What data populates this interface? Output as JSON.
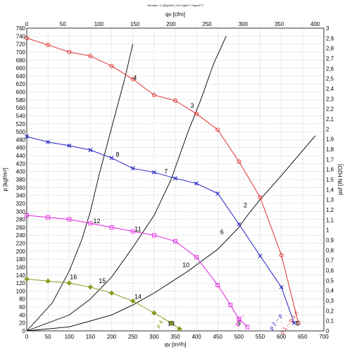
{
  "chart_data": {
    "type": "line",
    "title": "Density ≈ 1.2[Kg/m3] | 15.0 kg/m³ 1.2kg/m³ 2",
    "xlabel": "qv [m³/h]",
    "x2label": "qv [cfm]",
    "ylabel": "p [kgf/m²]",
    "y2label": "psf [IN H2O]",
    "xlim": [
      0,
      700
    ],
    "x2lim": [
      0,
      412
    ],
    "ylim": [
      0,
      760
    ],
    "y2lim": [
      0,
      3
    ],
    "xticks": [
      "0",
      "50",
      "100",
      "150",
      "200",
      "250",
      "300",
      "350",
      "400",
      "450",
      "500",
      "550",
      "600",
      "650",
      "700"
    ],
    "x2ticks": [
      "0",
      "50",
      "100",
      "150",
      "200",
      "250",
      "300",
      "350",
      "400"
    ],
    "yticks": [
      "0",
      "20",
      "40",
      "60",
      "80",
      "100",
      "120",
      "140",
      "160",
      "180",
      "200",
      "220",
      "240",
      "260",
      "280",
      "300",
      "320",
      "340",
      "360",
      "380",
      "400",
      "420",
      "440",
      "460",
      "480",
      "500",
      "520",
      "540",
      "560",
      "580",
      "600",
      "620",
      "640",
      "660",
      "680",
      "700",
      "720",
      "740",
      "760"
    ],
    "y2ticks": [
      "0",
      "0,1",
      "0,2",
      "0,3",
      "0,4",
      "0,5",
      "0,6",
      "0,7",
      "0,8",
      "0,9",
      "1",
      "1,1",
      "1,2",
      "1,3",
      "1,4",
      "1,5",
      "1,6",
      "1,7",
      "1,8",
      "1,9",
      "2",
      "2,1",
      "2,2",
      "2,3",
      "2,4",
      "2,5",
      "2,6",
      "2,7",
      "2,8",
      "2,9",
      "3"
    ],
    "grid": true,
    "series": [
      {
        "color": "#e03030",
        "marker": "circle",
        "x": [
          0,
          50,
          100,
          150,
          200,
          250,
          300,
          350,
          400,
          450,
          500,
          550,
          600,
          640
        ],
        "y": [
          735,
          718,
          700,
          690,
          665,
          632,
          592,
          578,
          545,
          505,
          425,
          335,
          190,
          20
        ]
      },
      {
        "color": "#2020c0",
        "marker": "x",
        "x": [
          0,
          50,
          100,
          150,
          200,
          250,
          300,
          350,
          400,
          450,
          500,
          550,
          600,
          630
        ],
        "y": [
          488,
          474,
          465,
          454,
          434,
          408,
          398,
          383,
          370,
          345,
          268,
          188,
          110,
          20
        ]
      },
      {
        "color": "#e020e0",
        "marker": "square",
        "x": [
          0,
          50,
          100,
          150,
          200,
          250,
          300,
          350,
          400,
          450,
          480,
          500,
          520
        ],
        "y": [
          290,
          285,
          280,
          270,
          260,
          250,
          240,
          225,
          185,
          115,
          65,
          30,
          10
        ]
      },
      {
        "color": "#8a9a20",
        "marker": "diamond",
        "x": [
          0,
          50,
          100,
          150,
          200,
          250,
          300,
          340,
          360
        ],
        "y": [
          130,
          125,
          120,
          110,
          95,
          75,
          45,
          20,
          5
        ]
      }
    ],
    "operating_lines": [
      {
        "x": [
          0,
          100,
          200,
          250,
          300,
          380,
          450,
          500,
          520,
          550,
          600,
          680
        ],
        "y": [
          0,
          10,
          40,
          65,
          95,
          150,
          205,
          260,
          290,
          330,
          390,
          490
        ]
      },
      {
        "x": [
          0,
          100,
          150,
          200,
          250,
          300,
          340,
          380,
          410,
          440,
          470
        ],
        "y": [
          0,
          40,
          80,
          135,
          210,
          290,
          380,
          500,
          580,
          670,
          740
        ]
      },
      {
        "x": [
          0,
          60,
          100,
          130,
          150,
          170,
          190,
          210,
          230,
          250
        ],
        "y": [
          0,
          70,
          150,
          230,
          300,
          390,
          470,
          550,
          630,
          720
        ]
      }
    ],
    "annotations": [
      {
        "text": "2",
        "x": 515,
        "y": 305,
        "color": "#000000"
      },
      {
        "text": "3",
        "x": 390,
        "y": 555,
        "color": "#000000"
      },
      {
        "text": "4",
        "x": 255,
        "y": 625,
        "color": "#000000"
      },
      {
        "text": "5",
        "x": 638,
        "y": 8,
        "color": "#000000"
      },
      {
        "text": "6",
        "x": 460,
        "y": 238,
        "color": "#000000"
      },
      {
        "text": "7",
        "x": 328,
        "y": 390,
        "color": "#000000"
      },
      {
        "text": "8",
        "x": 214,
        "y": 432,
        "color": "#000000"
      },
      {
        "text": "9",
        "x": 500,
        "y": 8,
        "color": "#000000"
      },
      {
        "text": "10",
        "x": 375,
        "y": 155,
        "color": "#000000"
      },
      {
        "text": "11",
        "x": 262,
        "y": 245,
        "color": "#000000"
      },
      {
        "text": "12",
        "x": 165,
        "y": 265,
        "color": "#000000"
      },
      {
        "text": "13",
        "x": 340,
        "y": 8,
        "color": "#000000"
      },
      {
        "text": "14",
        "x": 262,
        "y": 75,
        "color": "#000000"
      },
      {
        "text": "15",
        "x": 178,
        "y": 115,
        "color": "#000000"
      },
      {
        "text": "16",
        "x": 110,
        "y": 125,
        "color": "#000000"
      },
      {
        "text": "p 1 -- p 1.rl",
        "x": 622,
        "y": 18,
        "color": "#e03030"
      },
      {
        "text": "p 2 -- p",
        "x": 590,
        "y": 20,
        "color": "#2020c0"
      },
      {
        "text": "p 3 --",
        "x": 505,
        "y": 25,
        "color": "#e020e0"
      },
      {
        "text": "p 4 --",
        "x": 320,
        "y": 20,
        "color": "#8a9a20"
      }
    ]
  }
}
